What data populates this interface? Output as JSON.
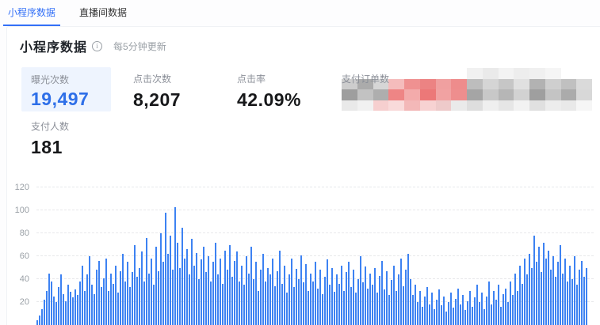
{
  "tabs": [
    {
      "label": "小程序数据",
      "active": true
    },
    {
      "label": "直播间数据",
      "active": false
    }
  ],
  "header": {
    "title": "小程序数据",
    "info_icon": "i",
    "update_note": "每5分钟更新"
  },
  "stats": [
    {
      "label": "曝光次数",
      "value": "19,497",
      "highlighted": true
    },
    {
      "label": "点击次数",
      "value": "8,207"
    },
    {
      "label": "点击率",
      "value": "42.09%"
    },
    {
      "label": "支付订单数",
      "value": "",
      "redacted": true
    },
    {
      "label": "支付人数",
      "value": "181"
    }
  ],
  "colors": {
    "accent_blue": "#3370f7",
    "stat_highlight_bg": "#eef4fe",
    "stat_highlight_text": "#2e6fe8",
    "bar_blue": "#3d82f2",
    "label_gray": "#8c9099"
  },
  "mosaic": {
    "rows": [
      [
        "",
        "",
        "",
        "",
        "",
        "",
        "",
        "",
        "#f1f1f1",
        "#eaeaea",
        "#f3f3f3",
        "#ededed",
        "#f0f0f0",
        "#f5f5f5",
        "",
        ""
      ],
      [
        "#cdcdcd",
        "#ababab",
        "#d6d6d6",
        "#f5bcbc",
        "#ef9191",
        "#ec8383",
        "#f0a0a0",
        "#ee8c8c",
        "#bdbdbd",
        "#d5d5d5",
        "#c6c6c6",
        "#e0e0e0",
        "#b2b2b2",
        "#cfcfcf",
        "#c0c0c0",
        "#dadada"
      ],
      [
        "#9e9e9e",
        "#c2c2c2",
        "#aeaeae",
        "#ee8585",
        "#f3abab",
        "#ec7878",
        "#f1a2a2",
        "#ee8e8e",
        "#a5a5a5",
        "#c8c8c8",
        "#b6b6b6",
        "#d2d2d2",
        "#9f9f9f",
        "#c4c4c4",
        "#ababab",
        "#d8d8d8"
      ],
      [
        "#e9e9e9",
        "#f1f1f1",
        "#f6cfcf",
        "#f9dada",
        "#f3b8b8",
        "#f7d2d2",
        "#eecaca",
        "#eaeaea",
        "#dedede",
        "#efefef",
        "#e6e6e6",
        "#f2f2f2",
        "#e0e0e0",
        "#ededed",
        "#e9e9e9",
        "#f6f6f6"
      ]
    ]
  },
  "chart_data": {
    "type": "bar",
    "title": "",
    "xlabel": "",
    "ylabel": "",
    "ylim": [
      0,
      120
    ],
    "yticks": [
      20,
      40,
      60,
      80,
      100,
      120
    ],
    "grid": "dashed-horizontal",
    "bar_color": "#3d82f2",
    "values": [
      4,
      8,
      14,
      22,
      30,
      45,
      38,
      25,
      20,
      33,
      44,
      27,
      21,
      35,
      29,
      24,
      31,
      26,
      38,
      52,
      30,
      44,
      60,
      35,
      27,
      48,
      56,
      33,
      41,
      58,
      30,
      45,
      36,
      52,
      28,
      47,
      62,
      38,
      55,
      33,
      46,
      70,
      42,
      50,
      64,
      38,
      76,
      45,
      58,
      35,
      68,
      47,
      80,
      55,
      98,
      62,
      78,
      48,
      103,
      72,
      50,
      85,
      58,
      66,
      44,
      75,
      52,
      63,
      40,
      57,
      68,
      46,
      60,
      38,
      55,
      72,
      44,
      58,
      36,
      65,
      48,
      70,
      42,
      56,
      64,
      38,
      52,
      35,
      60,
      45,
      68,
      40,
      55,
      30,
      48,
      62,
      38,
      50,
      44,
      58,
      34,
      47,
      65,
      36,
      52,
      28,
      44,
      58,
      33,
      49,
      40,
      61,
      37,
      53,
      30,
      45,
      38,
      55,
      32,
      48,
      27,
      42,
      57,
      35,
      50,
      29,
      44,
      36,
      52,
      30,
      46,
      55,
      33,
      48,
      28,
      40,
      60,
      37,
      51,
      32,
      45,
      35,
      50,
      28,
      43,
      56,
      31,
      47,
      26,
      39,
      52,
      30,
      44,
      58,
      34,
      48,
      62,
      40,
      26,
      35,
      20,
      30,
      16,
      25,
      33,
      18,
      28,
      14,
      22,
      31,
      17,
      25,
      12,
      20,
      28,
      15,
      23,
      32,
      18,
      26,
      13,
      21,
      30,
      16,
      24,
      35,
      20,
      28,
      14,
      25,
      38,
      18,
      30,
      22,
      35,
      16,
      27,
      32,
      20,
      38,
      26,
      45,
      30,
      52,
      36,
      58,
      44,
      62,
      50,
      78,
      55,
      68,
      46,
      72,
      58,
      65,
      48,
      60,
      42,
      55,
      70,
      45,
      58,
      38,
      52,
      40,
      60,
      35,
      48,
      56,
      42,
      50
    ]
  }
}
